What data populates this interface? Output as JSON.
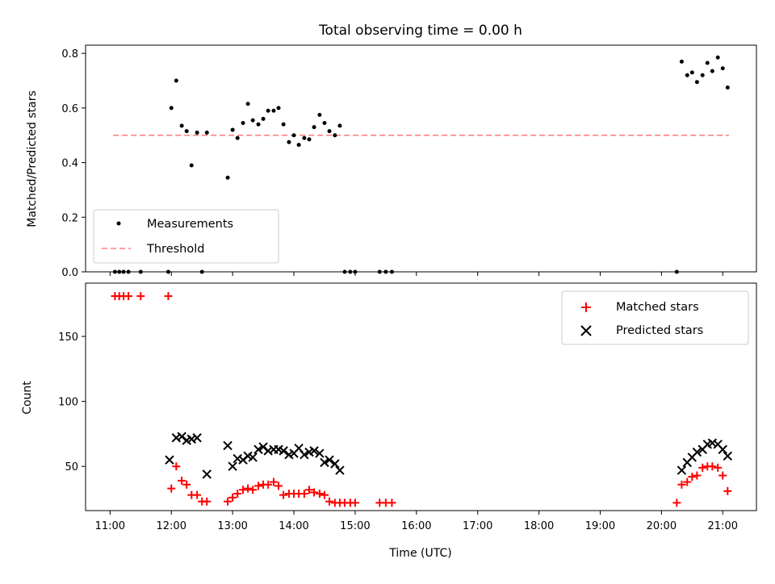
{
  "title": "Total observing time = 0.00 h",
  "colors": {
    "measure": "#000000",
    "threshold": "#ff7f7f",
    "matched": "#ff0000",
    "predicted": "#000000"
  },
  "chart_data": [
    {
      "type": "scatter",
      "ylabel": "Matched/Predicted stars",
      "xlim": [
        10.6,
        21.55
      ],
      "ylim": [
        0.0,
        0.83
      ],
      "yticks": [
        0.0,
        0.2,
        0.4,
        0.6,
        0.8
      ],
      "ytick_labels": [
        "0.0",
        "0.2",
        "0.4",
        "0.6",
        "0.8"
      ],
      "legend": {
        "position": "lower-left",
        "entries": [
          "Measurements",
          "Threshold"
        ]
      },
      "threshold": {
        "x": [
          11.05,
          21.1
        ],
        "y": 0.5
      },
      "measurements": {
        "x": [
          11.08,
          11.15,
          11.22,
          11.3,
          11.5,
          11.95,
          12.0,
          12.08,
          12.17,
          12.25,
          12.33,
          12.42,
          12.58,
          12.92,
          13.0,
          13.08,
          13.17,
          13.25,
          13.33,
          13.42,
          13.5,
          13.58,
          13.67,
          13.75,
          13.83,
          13.92,
          14.0,
          14.08,
          14.17,
          14.25,
          14.33,
          14.42,
          14.5,
          14.58,
          14.67,
          14.75,
          12.5,
          14.83,
          14.92,
          15.0,
          15.4,
          15.5,
          15.6,
          20.25,
          20.33,
          20.42,
          20.5,
          20.58,
          20.67,
          20.75,
          20.83,
          20.92,
          21.0,
          21.08
        ],
        "y": [
          0,
          0,
          0,
          0,
          0,
          0,
          0.6,
          0.7,
          0.535,
          0.515,
          0.39,
          0.51,
          0.51,
          0.345,
          0.52,
          0.49,
          0.545,
          0.615,
          0.555,
          0.54,
          0.56,
          0.59,
          0.59,
          0.6,
          0.54,
          0.475,
          0.5,
          0.465,
          0.49,
          0.485,
          0.53,
          0.575,
          0.545,
          0.515,
          0.5,
          0.535,
          0,
          0,
          0,
          0,
          0,
          0,
          0,
          0,
          0.77,
          0.72,
          0.73,
          0.695,
          0.72,
          0.765,
          0.735,
          0.785,
          0.745,
          0.675
        ]
      }
    },
    {
      "type": "scatter",
      "xlabel": "Time (UTC)",
      "ylabel": "Count",
      "xlim": [
        10.6,
        21.55
      ],
      "ylim": [
        16,
        191
      ],
      "xticks": [
        11,
        12,
        13,
        14,
        15,
        16,
        17,
        18,
        19,
        20,
        21
      ],
      "xtick_labels": [
        "11:00",
        "12:00",
        "13:00",
        "14:00",
        "15:00",
        "16:00",
        "17:00",
        "18:00",
        "19:00",
        "20:00",
        "21:00"
      ],
      "yticks": [
        50,
        100,
        150
      ],
      "ytick_labels": [
        "50",
        "100",
        "150"
      ],
      "legend": {
        "position": "top-right",
        "entries": [
          "Matched stars",
          "Predicted stars"
        ]
      },
      "series": [
        {
          "name": "Matched stars",
          "x": [
            11.08,
            11.15,
            11.22,
            11.3,
            11.5,
            11.95,
            12.0,
            12.08,
            12.17,
            12.25,
            12.33,
            12.42,
            12.5,
            12.58,
            12.92,
            13.0,
            13.08,
            13.17,
            13.25,
            13.33,
            13.42,
            13.5,
            13.58,
            13.67,
            13.75,
            13.83,
            13.92,
            14.0,
            14.08,
            14.17,
            14.25,
            14.33,
            14.42,
            14.5,
            14.58,
            14.67,
            14.75,
            14.83,
            14.92,
            15.0,
            15.4,
            15.5,
            15.6,
            20.25,
            20.33,
            20.42,
            20.5,
            20.58,
            20.67,
            20.75,
            20.83,
            20.92,
            21.0,
            21.08
          ],
          "y": [
            181,
            181,
            181,
            181,
            181,
            181,
            33,
            50,
            39,
            36,
            28,
            28,
            23,
            23,
            23,
            26,
            29,
            32,
            33,
            32,
            35,
            36,
            36,
            38,
            35,
            28,
            29,
            29,
            29,
            29,
            32,
            30,
            29,
            28,
            23,
            22,
            22,
            22,
            22,
            22,
            22,
            22,
            22,
            22,
            36,
            38,
            42,
            43,
            49,
            50,
            50,
            49,
            43,
            31
          ]
        },
        {
          "name": "Predicted stars",
          "x": [
            11.97,
            12.08,
            12.17,
            12.25,
            12.33,
            12.42,
            12.58,
            12.92,
            13.0,
            13.08,
            13.17,
            13.25,
            13.33,
            13.42,
            13.5,
            13.58,
            13.67,
            13.75,
            13.83,
            13.92,
            14.0,
            14.08,
            14.17,
            14.25,
            14.33,
            14.42,
            14.5,
            14.58,
            14.67,
            14.75,
            20.33,
            20.42,
            20.5,
            20.58,
            20.67,
            20.75,
            20.83,
            20.92,
            21.0,
            21.08
          ],
          "y": [
            55,
            72,
            73,
            70,
            71,
            72,
            44,
            66,
            50,
            56,
            55,
            58,
            57,
            63,
            65,
            62,
            63,
            63,
            62,
            59,
            60,
            64,
            59,
            61,
            62,
            60,
            53,
            55,
            52,
            47,
            47,
            53,
            57,
            61,
            63,
            67,
            68,
            67,
            63,
            58
          ]
        }
      ]
    }
  ]
}
